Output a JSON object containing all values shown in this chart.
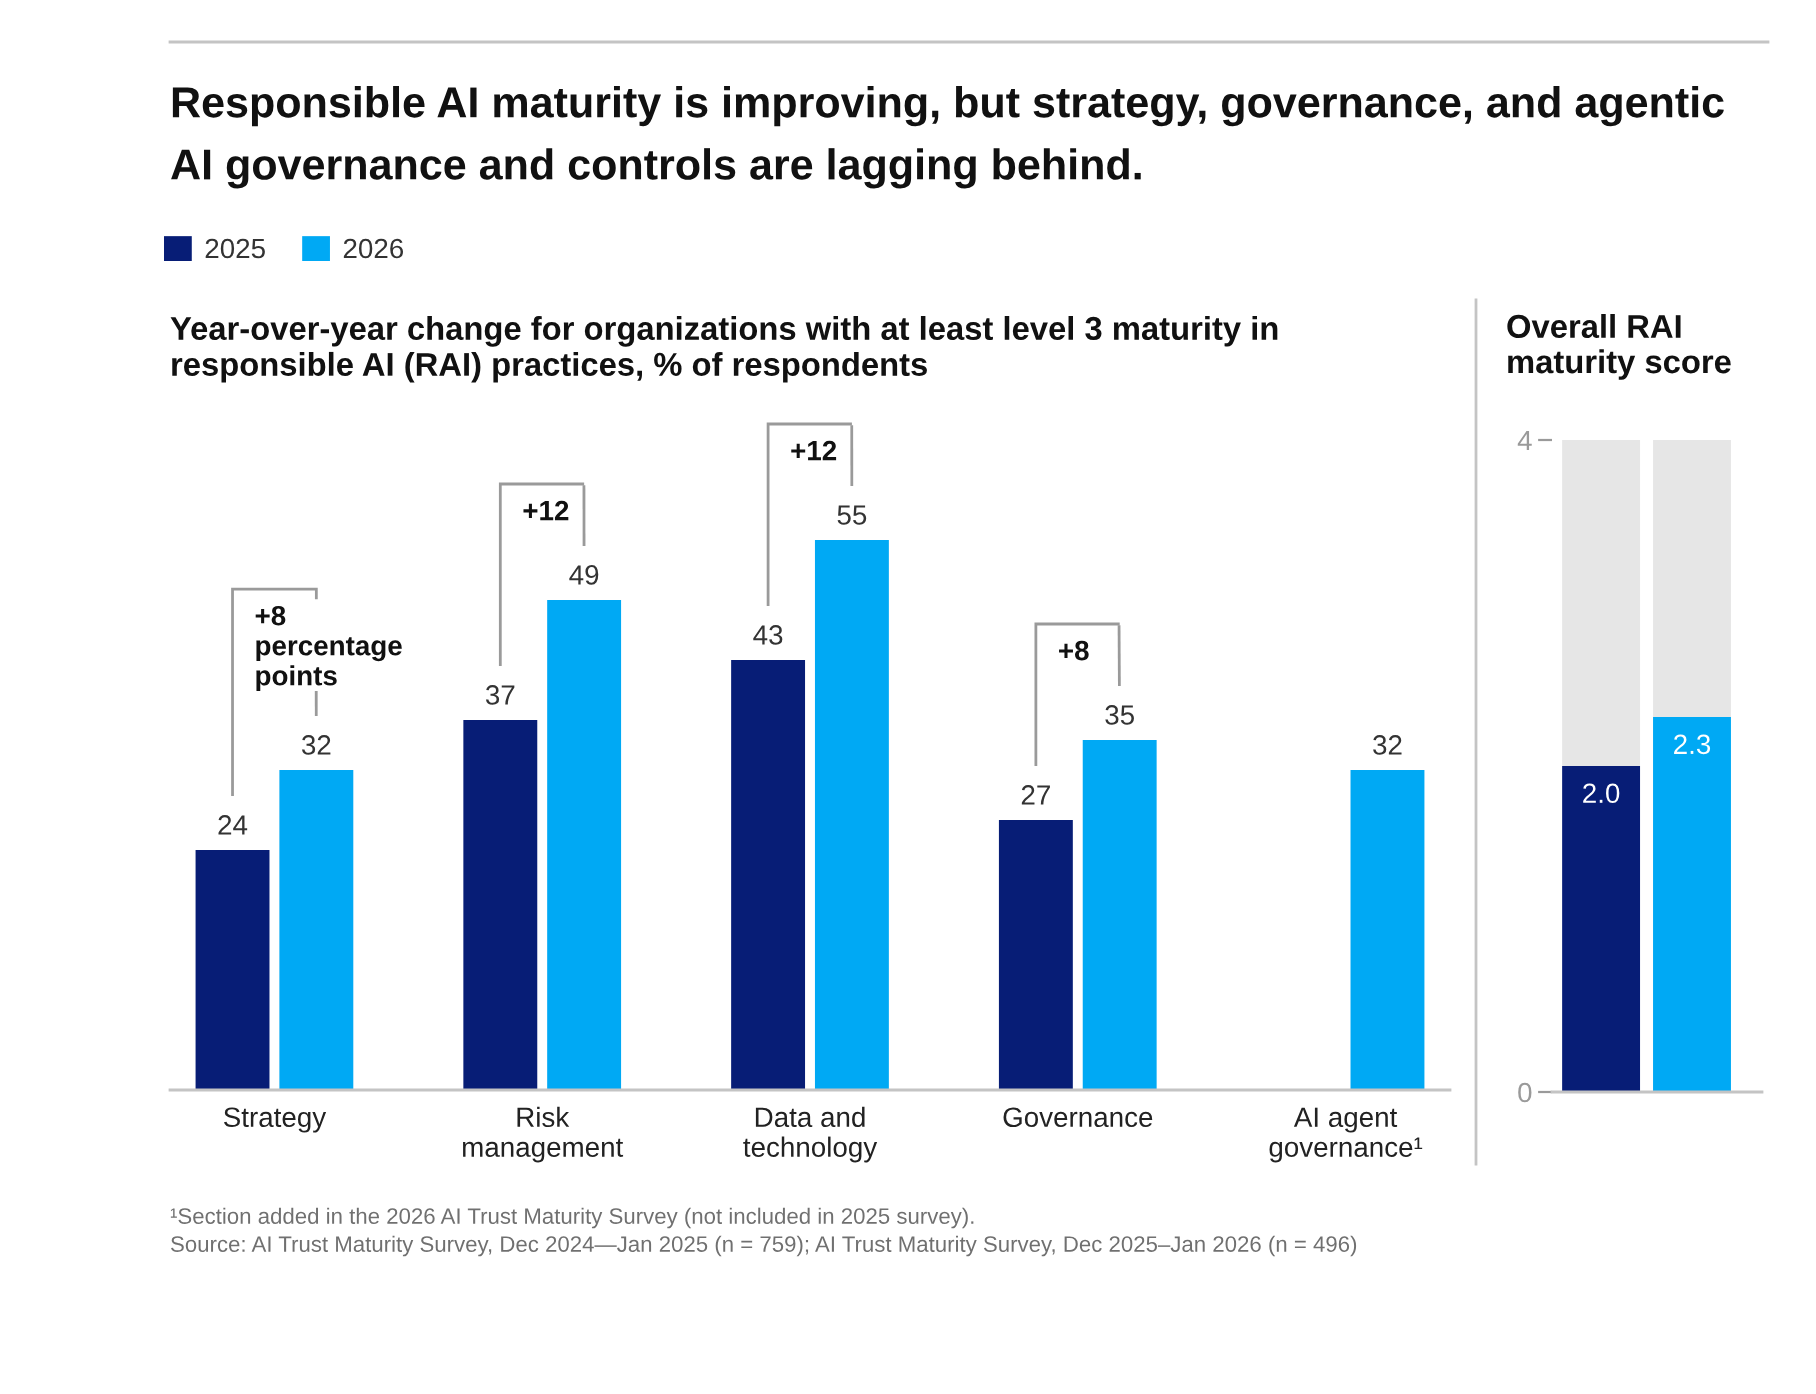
{
  "chart_data": [
    {
      "type": "bar",
      "title": "Responsible AI maturity is improving, but strategy, governance, and agentic\nAI governance and controls are lagging behind.",
      "subtitle": "Year-over-year change for organizations with at least level 3 maturity in\nresponsible AI (RAI) practices, % of respondents",
      "categories": [
        "Strategy",
        "Risk\nmanagement",
        "Data and\ntechnology",
        "Governance",
        "AI agent\ngovernance¹"
      ],
      "series": [
        {
          "name": "2025",
          "color": "#071d76",
          "values": [
            24,
            37,
            43,
            27,
            null
          ]
        },
        {
          "name": "2026",
          "color": "#00a9f4",
          "values": [
            32,
            49,
            55,
            35,
            32
          ]
        }
      ],
      "data_labels": true,
      "legend": "top left",
      "tick_labels": "x",
      "annotations": [
        {
          "text": "+8\npercentage\npoints",
          "x": "Strategy",
          "y": 32
        },
        {
          "text": "+12",
          "x": "Risk\nmanagement",
          "y": 49
        },
        {
          "text": "+12",
          "x": "Data and\ntechnology",
          "y": 55
        },
        {
          "text": "+8",
          "x": "Governance",
          "y": 35
        },
        "¹Section added in the 2026 AI Trust Maturity Survey (not included in 2025 survey).",
        "Source: AI Trust Maturity Survey, Dec 2024—Jan 2025 (n = 759); AI Trust Maturity Survey, Dec 2025–Jan 2026 (n = 496)"
      ]
    },
    {
      "type": "bar",
      "title": "Overall RAI\nmaturity score",
      "categories": [
        null,
        null
      ],
      "stacked": true,
      "ylim": [
        0,
        4
      ],
      "yticks": [
        0,
        4
      ],
      "tick_labels": "y",
      "series": [
        {
          "color": "#071d76",
          "values": [
            2.0,
            null
          ],
          "value_labels": [
            "2.0",
            null
          ]
        },
        {
          "color": "#00a9f4",
          "values": [
            null,
            2.3
          ],
          "value_labels": [
            null,
            "2.3"
          ]
        },
        {
          "color": "#e6e6e6",
          "values": [
            2.0,
            1.7
          ]
        }
      ]
    }
  ]
}
